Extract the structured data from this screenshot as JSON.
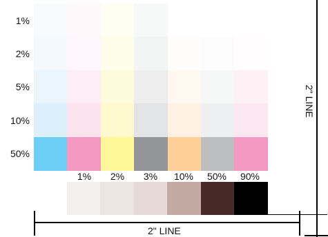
{
  "tint_chart": {
    "rows": [
      {
        "label": "1%",
        "colors": [
          "#f7fbfe",
          "#fef8fb",
          "#fefef2",
          "#f7f8f8",
          "#ffffff",
          "#ffffff",
          "#ffffff"
        ]
      },
      {
        "label": "2%",
        "colors": [
          "#f4f9fe",
          "#fef6fa",
          "#fefde9",
          "#f3f4f4",
          "#fefdfb",
          "#fcfcfc",
          "#fffdfe"
        ]
      },
      {
        "label": "5%",
        "colors": [
          "#eaf5fd",
          "#fdedf4",
          "#fefbdc",
          "#ededed",
          "#fef8f1",
          "#f6f7f7",
          "#fdf1f6"
        ]
      },
      {
        "label": "10%",
        "colors": [
          "#dcf0fc",
          "#fce3ee",
          "#fef9cf",
          "#e3e4e5",
          "#fef1e3",
          "#eeeff0",
          "#fce8f0"
        ]
      },
      {
        "label": "50%",
        "colors": [
          "#6dcff6",
          "#f49ac2",
          "#fff799",
          "#939598",
          "#fdd099",
          "#bcbec0",
          "#f49ac2"
        ]
      }
    ],
    "column_labels": [
      "1%",
      "2%",
      "3%",
      "10%",
      "50%",
      "90%"
    ],
    "bottom_swatches": [
      "#f4f0ee",
      "#ece6e3",
      "#e6dad6",
      "#c2aaa3",
      "#472926",
      "#000000"
    ]
  },
  "dimensions": {
    "horizontal_label": "2\" LINE",
    "vertical_label": "2\" LINE"
  }
}
